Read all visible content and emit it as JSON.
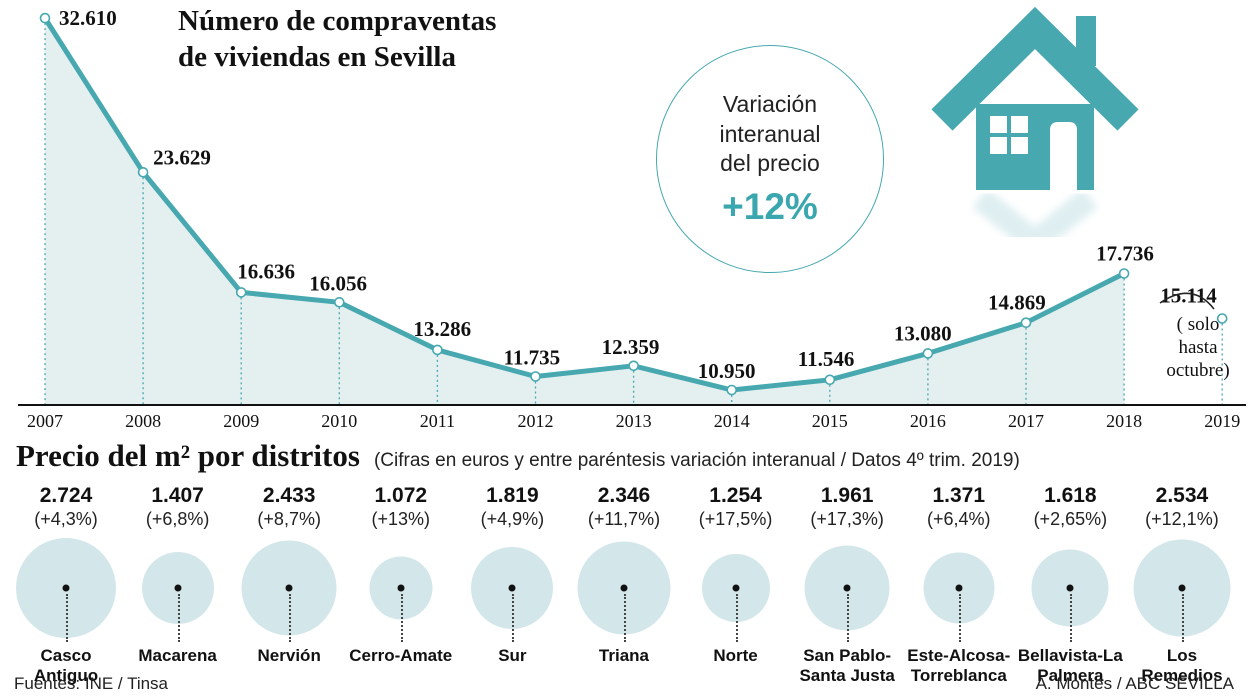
{
  "colors": {
    "teal": "#47a8b0",
    "area": "#e4eff0",
    "bubble": "#d3e7ea",
    "text": "#111111"
  },
  "icons": {
    "house": "house-icon",
    "reflection": "reflection-chevron-icon"
  },
  "header": {
    "title": "Número de compraventas\nde viviendas en Sevilla"
  },
  "variation": {
    "label": "Variación\ninteranual\ndel precio",
    "value": "+12%"
  },
  "chart_note": {
    "text": "( solo\nhasta\noctubre)"
  },
  "chart_data": [
    {
      "type": "line",
      "title": "Número de compraventas de viviendas en Sevilla",
      "x": [
        2007,
        2008,
        2009,
        2010,
        2011,
        2012,
        2013,
        2014,
        2015,
        2016,
        2017,
        2018,
        2019
      ],
      "values": [
        32610,
        23629,
        16636,
        16056,
        13286,
        11735,
        12359,
        10950,
        11546,
        13080,
        14869,
        17736,
        15114
      ],
      "labels": [
        "32.610",
        "23.629",
        "16.636",
        "16.056",
        "13.286",
        "11.735",
        "12.359",
        "10.950",
        "11.546",
        "13.080",
        "14.869",
        "17.736",
        "15.114"
      ],
      "ylim": [
        10000,
        33000
      ],
      "grid": false,
      "legend": false,
      "marker": "open-circle",
      "line_color": "#47a8b0",
      "annotations": {
        "last_point_note": "( solo hasta octubre)",
        "variation_badge": "Variación interanual del precio +12%"
      }
    },
    {
      "type": "bubble",
      "title": "Precio del m² por distritos",
      "subtitle": "(Cifras en euros y entre paréntesis variación interanual / Datos 4º trim. 2019)",
      "categories": [
        "Casco Antiguo",
        "Macarena",
        "Nervión",
        "Cerro-Amate",
        "Sur",
        "Triana",
        "Norte",
        "San Pablo-Santa Justa",
        "Este-Alcosa-Torreblanca",
        "Bellavista-La Palmera",
        "Los Remedios"
      ],
      "values": [
        2724,
        1407,
        2433,
        1072,
        1819,
        2346,
        1254,
        1961,
        1371,
        1618,
        2534
      ],
      "value_labels": [
        "2.724",
        "1.407",
        "2.433",
        "1.072",
        "1.819",
        "2.346",
        "1.254",
        "1.961",
        "1.371",
        "1.618",
        "2.534"
      ],
      "variation_labels": [
        "(+4,3%)",
        "(+6,8%)",
        "(+8,7%)",
        "(+13%)",
        "(+4,9%)",
        "(+11,7%)",
        "(+17,5%)",
        "(+17,3%)",
        "(+6,4%)",
        "(+2,65%)",
        "(+12,1%)"
      ]
    }
  ],
  "districts": {
    "title": "Precio del m² por distritos",
    "subtitle": "(Cifras en euros y entre paréntesis variación interanual / Datos 4º trim. 2019)",
    "items": [
      {
        "name": "Casco Antiguo",
        "price": 2724,
        "value": "2.724",
        "variation": "(+4,3%)"
      },
      {
        "name": "Macarena",
        "price": 1407,
        "value": "1.407",
        "variation": "(+6,8%)"
      },
      {
        "name": "Nervión",
        "price": 2433,
        "value": "2.433",
        "variation": "(+8,7%)"
      },
      {
        "name": "Cerro-Amate",
        "price": 1072,
        "value": "1.072",
        "variation": "(+13%)"
      },
      {
        "name": "Sur",
        "price": 1819,
        "value": "1.819",
        "variation": "(+4,9%)"
      },
      {
        "name": "Triana",
        "price": 2346,
        "value": "2.346",
        "variation": "(+11,7%)"
      },
      {
        "name": "Norte",
        "price": 1254,
        "value": "1.254",
        "variation": "(+17,5%)"
      },
      {
        "name": "San Pablo-Santa Justa",
        "price": 1961,
        "value": "1.961",
        "variation": "(+17,3%)"
      },
      {
        "name": "Este-Alcosa-Torreblanca",
        "price": 1371,
        "value": "1.371",
        "variation": "(+6,4%)"
      },
      {
        "name": "Bellavista-La Palmera",
        "price": 1618,
        "value": "1.618",
        "variation": "(+2,65%)"
      },
      {
        "name": "Los Remedios",
        "price": 2534,
        "value": "2.534",
        "variation": "(+12,1%)"
      }
    ]
  },
  "footer": {
    "source": "Fuentes: INE / Tinsa",
    "credit": "A. Montes / ABC SEVILLA"
  }
}
